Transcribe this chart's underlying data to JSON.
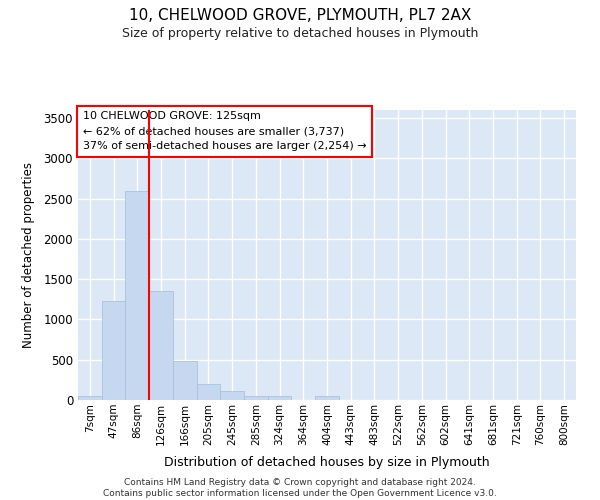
{
  "title1": "10, CHELWOOD GROVE, PLYMOUTH, PL7 2AX",
  "title2": "Size of property relative to detached houses in Plymouth",
  "xlabel": "Distribution of detached houses by size in Plymouth",
  "ylabel": "Number of detached properties",
  "bin_labels": [
    "7sqm",
    "47sqm",
    "86sqm",
    "126sqm",
    "166sqm",
    "205sqm",
    "245sqm",
    "285sqm",
    "324sqm",
    "364sqm",
    "404sqm",
    "443sqm",
    "483sqm",
    "522sqm",
    "562sqm",
    "602sqm",
    "641sqm",
    "681sqm",
    "721sqm",
    "760sqm",
    "800sqm"
  ],
  "bar_heights": [
    55,
    1230,
    2590,
    1350,
    490,
    200,
    110,
    50,
    50,
    0,
    50,
    0,
    0,
    0,
    0,
    0,
    0,
    0,
    0,
    0,
    0
  ],
  "bar_color": "#c5d8f0",
  "bar_edge_color": "#a0bedd",
  "plot_bg_color": "#dce8f5",
  "fig_bg_color": "#ffffff",
  "grid_color": "#ffffff",
  "ylim_max": 3600,
  "yticks": [
    0,
    500,
    1000,
    1500,
    2000,
    2500,
    3000,
    3500
  ],
  "red_line_bin_index": 3,
  "annotation_line1": "10 CHELWOOD GROVE: 125sqm",
  "annotation_line2": "← 62% of detached houses are smaller (3,737)",
  "annotation_line3": "37% of semi-detached houses are larger (2,254) →",
  "footer_line1": "Contains HM Land Registry data © Crown copyright and database right 2024.",
  "footer_line2": "Contains public sector information licensed under the Open Government Licence v3.0."
}
